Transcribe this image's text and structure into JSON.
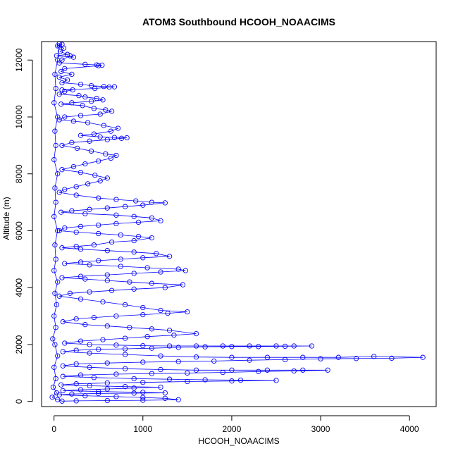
{
  "chart_data": {
    "type": "scatter",
    "title": "ATOM3 Southbound HCOOH_NOAACIMS",
    "xlabel": "HCOOH_NOAACIMS",
    "ylabel": "Altitude (m)",
    "xlim": [
      -140,
      4300
    ],
    "ylim": [
      -180,
      12650
    ],
    "x_ticks": [
      0,
      1000,
      2000,
      3000,
      4000
    ],
    "y_ticks": [
      0,
      2000,
      4000,
      6000,
      8000,
      10000,
      12000
    ],
    "x_tick_labels": [
      "0",
      "1000",
      "2000",
      "3000",
      "4000"
    ],
    "y_tick_labels": [
      "0",
      "2000",
      "4000",
      "6000",
      "8000",
      "10000",
      "12000"
    ],
    "grid": false,
    "marker": "open-circle",
    "connected": true,
    "color": "#0000ff",
    "series": [
      {
        "points": [
          [
            60,
            12580
          ],
          [
            90,
            12550
          ],
          [
            40,
            12500
          ],
          [
            110,
            12420
          ],
          [
            70,
            12300
          ],
          [
            150,
            12200
          ],
          [
            30,
            12150
          ],
          [
            220,
            12100
          ],
          [
            180,
            12150
          ],
          [
            90,
            12000
          ],
          [
            60,
            11900
          ],
          [
            350,
            11850
          ],
          [
            480,
            11830
          ],
          [
            540,
            11820
          ],
          [
            500,
            11800
          ],
          [
            120,
            11700
          ],
          [
            80,
            11600
          ],
          [
            200,
            11500
          ],
          [
            60,
            11400
          ],
          [
            150,
            11300
          ],
          [
            90,
            11200
          ],
          [
            300,
            11150
          ],
          [
            420,
            11100
          ],
          [
            560,
            11070
          ],
          [
            680,
            11060
          ],
          [
            620,
            11050
          ],
          [
            460,
            11000
          ],
          [
            90,
            10950
          ],
          [
            210,
            10950
          ],
          [
            120,
            10900
          ],
          [
            60,
            10800
          ],
          [
            280,
            10750
          ],
          [
            350,
            10700
          ],
          [
            480,
            10650
          ],
          [
            550,
            10600
          ],
          [
            420,
            10550
          ],
          [
            200,
            10500
          ],
          [
            80,
            10450
          ],
          [
            320,
            10400
          ],
          [
            450,
            10300
          ],
          [
            580,
            10250
          ],
          [
            650,
            10200
          ],
          [
            520,
            10100
          ],
          [
            300,
            10050
          ],
          [
            120,
            10000
          ],
          [
            60,
            9900
          ],
          [
            220,
            9850
          ],
          [
            380,
            9800
          ],
          [
            560,
            9700
          ],
          [
            720,
            9600
          ],
          [
            640,
            9500
          ],
          [
            450,
            9400
          ],
          [
            300,
            9350
          ],
          [
            520,
            9300
          ],
          [
            680,
            9280
          ],
          [
            820,
            9270
          ],
          [
            760,
            9250
          ],
          [
            600,
            9200
          ],
          [
            400,
            9150
          ],
          [
            200,
            9100
          ],
          [
            90,
            9000
          ],
          [
            260,
            8900
          ],
          [
            420,
            8800
          ],
          [
            580,
            8700
          ],
          [
            700,
            8650
          ],
          [
            640,
            8550
          ],
          [
            500,
            8450
          ],
          [
            350,
            8350
          ],
          [
            220,
            8250
          ],
          [
            90,
            8150
          ],
          [
            300,
            8050
          ],
          [
            460,
            7950
          ],
          [
            600,
            7850
          ],
          [
            520,
            7750
          ],
          [
            380,
            7650
          ],
          [
            250,
            7550
          ],
          [
            120,
            7450
          ],
          [
            60,
            7350
          ],
          [
            250,
            7250
          ],
          [
            500,
            7150
          ],
          [
            700,
            7100
          ],
          [
            920,
            7050
          ],
          [
            1100,
            7000
          ],
          [
            1250,
            6980
          ],
          [
            1000,
            6900
          ],
          [
            800,
            6850
          ],
          [
            600,
            6800
          ],
          [
            400,
            6750
          ],
          [
            200,
            6700
          ],
          [
            80,
            6650
          ],
          [
            350,
            6600
          ],
          [
            700,
            6550
          ],
          [
            900,
            6500
          ],
          [
            1100,
            6450
          ],
          [
            1200,
            6350
          ],
          [
            950,
            6300
          ],
          [
            700,
            6250
          ],
          [
            500,
            6200
          ],
          [
            300,
            6150
          ],
          [
            120,
            6100
          ],
          [
            60,
            6000
          ],
          [
            250,
            5950
          ],
          [
            500,
            5900
          ],
          [
            750,
            5850
          ],
          [
            950,
            5800
          ],
          [
            1100,
            5750
          ],
          [
            900,
            5650
          ],
          [
            650,
            5600
          ],
          [
            450,
            5500
          ],
          [
            250,
            5450
          ],
          [
            90,
            5400
          ],
          [
            300,
            5350
          ],
          [
            600,
            5300
          ],
          [
            900,
            5250
          ],
          [
            1150,
            5200
          ],
          [
            1300,
            5100
          ],
          [
            1000,
            5050
          ],
          [
            750,
            5000
          ],
          [
            500,
            4950
          ],
          [
            300,
            4900
          ],
          [
            120,
            4850
          ],
          [
            400,
            4800
          ],
          [
            750,
            4750
          ],
          [
            1050,
            4700
          ],
          [
            1400,
            4650
          ],
          [
            1480,
            4600
          ],
          [
            1200,
            4550
          ],
          [
            900,
            4500
          ],
          [
            600,
            4450
          ],
          [
            300,
            4400
          ],
          [
            90,
            4350
          ],
          [
            350,
            4300
          ],
          [
            600,
            4250
          ],
          [
            850,
            4200
          ],
          [
            1100,
            4150
          ],
          [
            1450,
            4100
          ],
          [
            1250,
            4000
          ],
          [
            900,
            3950
          ],
          [
            650,
            3900
          ],
          [
            400,
            3850
          ],
          [
            180,
            3800
          ],
          [
            60,
            3700
          ],
          [
            300,
            3600
          ],
          [
            550,
            3500
          ],
          [
            800,
            3400
          ],
          [
            1000,
            3300
          ],
          [
            1200,
            3200
          ],
          [
            1500,
            3150
          ],
          [
            1280,
            3100
          ],
          [
            1000,
            3050
          ],
          [
            700,
            3000
          ],
          [
            450,
            2950
          ],
          [
            250,
            2900
          ],
          [
            100,
            2800
          ],
          [
            350,
            2700
          ],
          [
            600,
            2650
          ],
          [
            850,
            2600
          ],
          [
            1100,
            2550
          ],
          [
            1300,
            2500
          ],
          [
            1600,
            2380
          ],
          [
            1350,
            2330
          ],
          [
            1050,
            2280
          ],
          [
            800,
            2220
          ],
          [
            550,
            2170
          ],
          [
            300,
            2120
          ],
          [
            120,
            2050
          ],
          [
            400,
            2000
          ],
          [
            700,
            1980
          ],
          [
            1000,
            1960
          ],
          [
            1300,
            1950
          ],
          [
            1600,
            1950
          ],
          [
            1900,
            1950
          ],
          [
            2200,
            1950
          ],
          [
            2500,
            1950
          ],
          [
            2700,
            1950
          ],
          [
            2900,
            1950
          ],
          [
            2600,
            1940
          ],
          [
            2300,
            1930
          ],
          [
            2000,
            1930
          ],
          [
            1700,
            1920
          ],
          [
            1400,
            1900
          ],
          [
            1100,
            1870
          ],
          [
            800,
            1850
          ],
          [
            500,
            1830
          ],
          [
            250,
            1800
          ],
          [
            100,
            1750
          ],
          [
            400,
            1700
          ],
          [
            800,
            1650
          ],
          [
            1200,
            1600
          ],
          [
            1600,
            1560
          ],
          [
            2000,
            1550
          ],
          [
            2400,
            1550
          ],
          [
            2800,
            1550
          ],
          [
            3200,
            1550
          ],
          [
            3600,
            1580
          ],
          [
            4150,
            1550
          ],
          [
            3800,
            1520
          ],
          [
            3400,
            1510
          ],
          [
            3000,
            1500
          ],
          [
            2600,
            1470
          ],
          [
            2200,
            1450
          ],
          [
            1800,
            1420
          ],
          [
            1400,
            1400
          ],
          [
            1000,
            1380
          ],
          [
            600,
            1350
          ],
          [
            250,
            1320
          ],
          [
            100,
            1250
          ],
          [
            400,
            1200
          ],
          [
            800,
            1150
          ],
          [
            1200,
            1120
          ],
          [
            1600,
            1100
          ],
          [
            2000,
            1100
          ],
          [
            2400,
            1100
          ],
          [
            2800,
            1100
          ],
          [
            3080,
            1100
          ],
          [
            2700,
            1070
          ],
          [
            2300,
            1050
          ],
          [
            1900,
            1020
          ],
          [
            1500,
            1000
          ],
          [
            1100,
            980
          ],
          [
            700,
            960
          ],
          [
            300,
            930
          ],
          [
            100,
            880
          ],
          [
            450,
            840
          ],
          [
            900,
            800
          ],
          [
            1300,
            780
          ],
          [
            1700,
            760
          ],
          [
            2100,
            750
          ],
          [
            2500,
            740
          ],
          [
            2000,
            720
          ],
          [
            1500,
            700
          ],
          [
            1000,
            670
          ],
          [
            600,
            650
          ],
          [
            250,
            620
          ],
          [
            80,
            580
          ],
          [
            400,
            550
          ],
          [
            800,
            520
          ],
          [
            1200,
            500
          ],
          [
            900,
            470
          ],
          [
            600,
            440
          ],
          [
            300,
            410
          ],
          [
            100,
            380
          ],
          [
            500,
            350
          ],
          [
            1000,
            320
          ],
          [
            1250,
            300
          ],
          [
            900,
            290
          ],
          [
            500,
            280
          ],
          [
            200,
            260
          ],
          [
            60,
            230
          ],
          [
            350,
            200
          ],
          [
            700,
            170
          ],
          [
            1000,
            140
          ],
          [
            1250,
            110
          ],
          [
            1400,
            60
          ],
          [
            1000,
            40
          ],
          [
            600,
            30
          ],
          [
            250,
            20
          ],
          [
            90,
            10
          ],
          [
            40,
            60
          ],
          [
            -20,
            150
          ],
          [
            30,
            300
          ],
          [
            -10,
            500
          ],
          [
            20,
            800
          ],
          [
            0,
            1200
          ],
          [
            40,
            1600
          ],
          [
            10,
            2000
          ],
          [
            -15,
            2200
          ],
          [
            20,
            2600
          ],
          [
            0,
            3000
          ],
          [
            30,
            3400
          ],
          [
            10,
            3800
          ],
          [
            40,
            4200
          ],
          [
            0,
            4600
          ],
          [
            20,
            5000
          ],
          [
            10,
            5500
          ],
          [
            40,
            6000
          ],
          [
            0,
            6500
          ],
          [
            20,
            7000
          ],
          [
            10,
            7500
          ],
          [
            40,
            8000
          ],
          [
            0,
            8500
          ],
          [
            20,
            9000
          ],
          [
            10,
            9500
          ],
          [
            40,
            10000
          ],
          [
            0,
            10500
          ],
          [
            20,
            11000
          ],
          [
            10,
            11500
          ],
          [
            40,
            12000
          ],
          [
            60,
            12500
          ]
        ]
      }
    ]
  }
}
